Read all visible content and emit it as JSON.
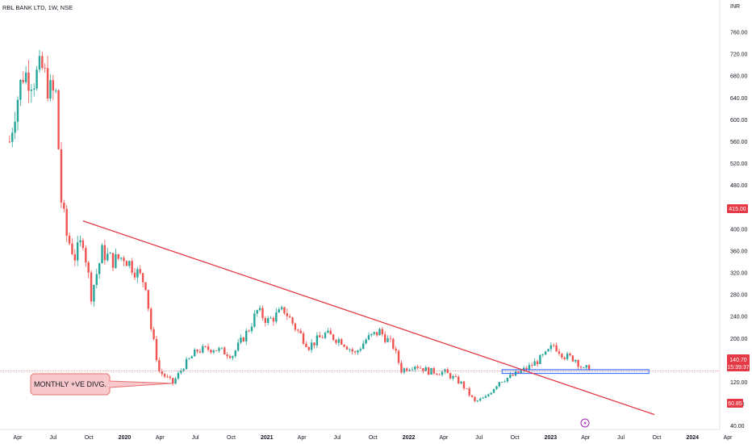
{
  "header": {
    "title": "RBL BANK LTD, 1W, NSE"
  },
  "currency_label": "INR",
  "annotation": {
    "text": "MONTHLY +VE DIVG."
  },
  "badges": {
    "level_415": "415.00",
    "last_price": "140.70",
    "countdown": "15:39:37",
    "level_60": "60.85"
  },
  "colors": {
    "up": "#26a69a",
    "down": "#ef5350",
    "trendline": "#e53945",
    "price_line": "#f28b8b",
    "support_box": "#2962ff",
    "annotation_fill": "#f8c8cc",
    "annotation_border": "#e57373",
    "event_icon": "#9c27b0"
  },
  "event_icon": "lightning-icon",
  "chart_data": {
    "type": "candlestick",
    "title": "RBL BANK LTD, 1W, NSE",
    "x_tick_labels": [
      "Apr",
      "Jul",
      "Oct",
      "2020",
      "Apr",
      "Jul",
      "Oct",
      "2021",
      "Apr",
      "Jul",
      "Oct",
      "2022",
      "Apr",
      "Jul",
      "Oct",
      "2023",
      "Apr",
      "Jul",
      "Oct",
      "2024",
      "Apr"
    ],
    "x_tick_dates": [
      "2019-04-01",
      "2019-07-01",
      "2019-10-01",
      "2020-01-01",
      "2020-04-01",
      "2020-07-01",
      "2020-10-01",
      "2021-01-01",
      "2021-04-01",
      "2021-07-01",
      "2021-10-01",
      "2022-01-01",
      "2022-04-01",
      "2022-07-01",
      "2022-10-01",
      "2023-01-01",
      "2023-04-01",
      "2023-07-01",
      "2023-10-01",
      "2024-01-01",
      "2024-04-01"
    ],
    "y_tick_labels": [
      "40.00",
      "80.00",
      "120.00",
      "160.00",
      "200.00",
      "240.00",
      "280.00",
      "320.00",
      "360.00",
      "400.00",
      "440.00",
      "480.00",
      "520.00",
      "560.00",
      "600.00",
      "640.00",
      "680.00",
      "720.00",
      "760.00"
    ],
    "ylim": [
      20,
      790
    ],
    "last_price": 140.7,
    "trendline": {
      "start": [
        "2019-09-16",
        415.0
      ],
      "end": [
        "2023-09-25",
        60.85
      ]
    },
    "support_zone": {
      "start": "2022-08-29",
      "end": "2023-09-11",
      "low": 136,
      "high": 143
    },
    "divergence_pointer_date": "2020-05-04",
    "weekly_close_anchors": [
      [
        "2019-03-11",
        560
      ],
      [
        "2019-03-25",
        620
      ],
      [
        "2019-04-15",
        685
      ],
      [
        "2019-05-13",
        676
      ],
      [
        "2019-06-03",
        692
      ],
      [
        "2019-06-24",
        650
      ],
      [
        "2019-07-08",
        645
      ],
      [
        "2019-07-22",
        452
      ],
      [
        "2019-08-05",
        388
      ],
      [
        "2019-08-26",
        350
      ],
      [
        "2019-09-16",
        382
      ],
      [
        "2019-10-07",
        280
      ],
      [
        "2019-11-04",
        358
      ],
      [
        "2019-12-02",
        342
      ],
      [
        "2019-12-30",
        350
      ],
      [
        "2020-02-03",
        320
      ],
      [
        "2020-02-24",
        300
      ],
      [
        "2020-03-09",
        218
      ],
      [
        "2020-03-30",
        140
      ],
      [
        "2020-05-04",
        118
      ],
      [
        "2020-06-01",
        150
      ],
      [
        "2020-07-06",
        178
      ],
      [
        "2020-08-17",
        182
      ],
      [
        "2020-10-05",
        170
      ],
      [
        "2020-11-16",
        218
      ],
      [
        "2020-12-07",
        250
      ],
      [
        "2021-01-04",
        232
      ],
      [
        "2021-02-15",
        252
      ],
      [
        "2021-03-15",
        220
      ],
      [
        "2021-04-19",
        186
      ],
      [
        "2021-05-31",
        208
      ],
      [
        "2021-07-12",
        196
      ],
      [
        "2021-08-16",
        172
      ],
      [
        "2021-09-13",
        198
      ],
      [
        "2021-10-18",
        213
      ],
      [
        "2021-11-22",
        186
      ],
      [
        "2021-12-13",
        142
      ],
      [
        "2022-01-17",
        152
      ],
      [
        "2022-02-21",
        140
      ],
      [
        "2022-04-04",
        138
      ],
      [
        "2022-05-16",
        118
      ],
      [
        "2022-06-20",
        84
      ],
      [
        "2022-07-18",
        92
      ],
      [
        "2022-08-22",
        122
      ],
      [
        "2022-09-26",
        132
      ],
      [
        "2022-11-07",
        148
      ],
      [
        "2022-12-19",
        170
      ],
      [
        "2023-01-09",
        188
      ],
      [
        "2023-02-06",
        168
      ],
      [
        "2023-03-06",
        162
      ],
      [
        "2023-03-27",
        142
      ],
      [
        "2023-04-10",
        148
      ]
    ]
  }
}
